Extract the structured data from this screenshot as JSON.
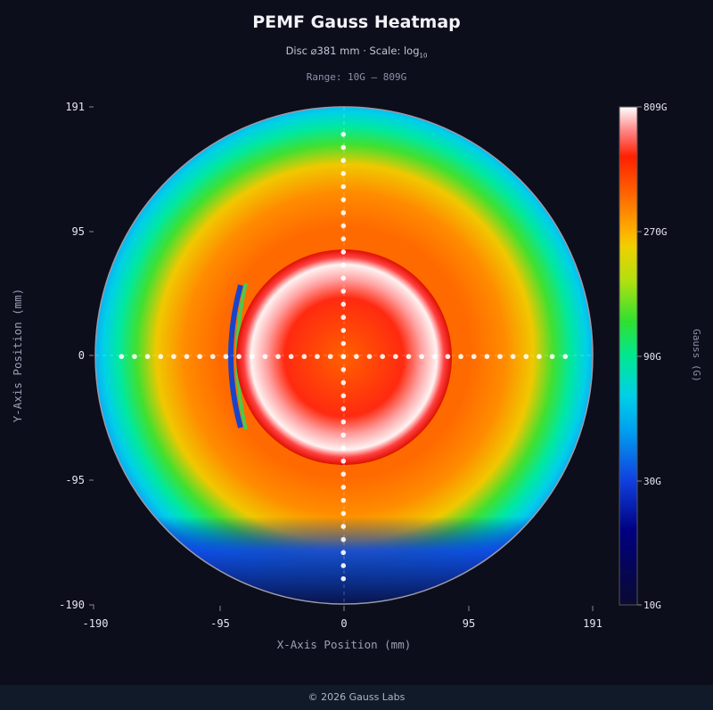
{
  "header": {
    "title": "PEMF Gauss Heatmap",
    "subtitle_prefix": "Disc ⌀381 mm  ·  Scale: log",
    "subtitle_sub": "10",
    "range": "Range: 10G – 809G"
  },
  "chart_data": {
    "type": "heatmap",
    "title": "PEMF Gauss Heatmap",
    "xlabel": "X-Axis Position (mm)",
    "ylabel": "Y-Axis Position (mm)",
    "xlim": [
      -190,
      191
    ],
    "ylim": [
      -190,
      191
    ],
    "x_ticks": [
      "-190",
      "-95",
      "0",
      "95",
      "191"
    ],
    "y_ticks": [
      "191",
      "95",
      "0",
      "-95",
      "-190"
    ],
    "disc_diameter_mm": 381,
    "scale": "log10",
    "colorbar": {
      "label": "Gauss (G)",
      "min": 10,
      "max": 809,
      "ticks": [
        "809G",
        "270G",
        "90G",
        "30G",
        "10G"
      ]
    },
    "probe_spacing_mm": 10,
    "probe_extent_mm": 170
  },
  "footer": {
    "text": "© 2026 Gauss Labs"
  }
}
